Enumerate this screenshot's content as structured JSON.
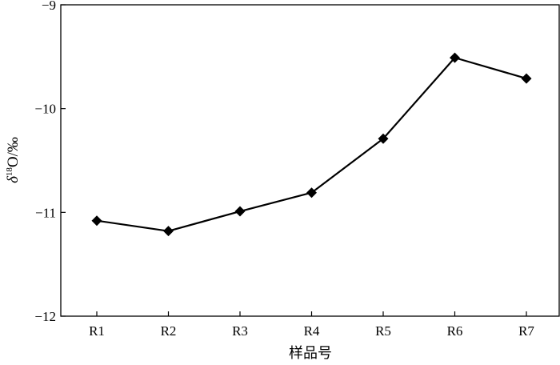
{
  "chart_data": {
    "type": "line",
    "categories": [
      "R1",
      "R2",
      "R3",
      "R4",
      "R5",
      "R6",
      "R7"
    ],
    "series": [
      {
        "values": [
          -11.08,
          -11.18,
          -10.99,
          -10.81,
          -10.29,
          -9.51,
          -9.71
        ]
      }
    ],
    "xlabel": "样品号",
    "ylabel": {
      "prefix": "δ",
      "sup": "18",
      "suffix": "O/‰"
    },
    "ylim": [
      -12,
      -9
    ],
    "yticks": [
      -9,
      -10,
      -11,
      -12
    ],
    "ytick_labels": [
      "−9",
      "−10",
      "−11",
      "−12"
    ],
    "grid": false,
    "legend": "none",
    "colors": {
      "line": "#000000",
      "marker": "#000000"
    },
    "marker": "diamond"
  }
}
